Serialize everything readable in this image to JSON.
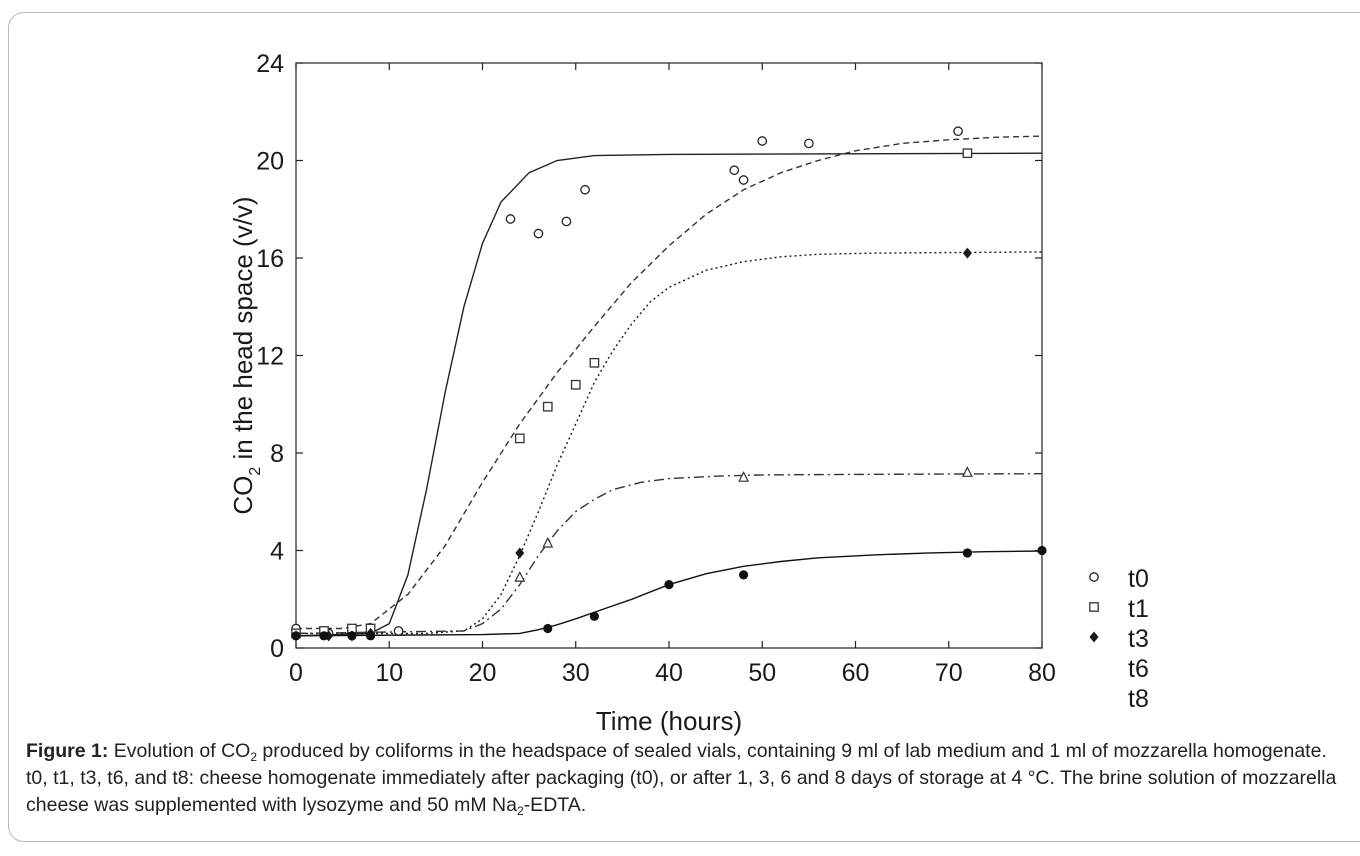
{
  "chart_data": {
    "type": "scatter",
    "xlabel": "Time (hours)",
    "ylabel_parts": [
      "CO",
      "2",
      " in the head space (v/v)"
    ],
    "xlim": [
      0,
      80
    ],
    "ylim": [
      0,
      24
    ],
    "xticks": [
      0,
      10,
      20,
      30,
      40,
      50,
      60,
      70,
      80
    ],
    "yticks": [
      0,
      4,
      8,
      12,
      16,
      20,
      24
    ],
    "grid": false,
    "legend_placement": "right",
    "series": [
      {
        "name": "t0",
        "marker": "open-circle",
        "line_style": "solid",
        "color": "#222222",
        "points": [
          [
            0,
            0.8
          ],
          [
            3.5,
            0.6
          ],
          [
            6,
            0.7
          ],
          [
            8,
            0.7
          ],
          [
            11,
            0.7
          ],
          [
            23,
            17.6
          ],
          [
            26,
            17.0
          ],
          [
            29,
            17.5
          ],
          [
            31,
            18.8
          ],
          [
            47,
            19.6
          ],
          [
            48,
            19.2
          ],
          [
            50,
            20.8
          ],
          [
            55,
            20.7
          ],
          [
            71,
            21.2
          ]
        ],
        "fit": [
          [
            0,
            0.5
          ],
          [
            8,
            0.6
          ],
          [
            10,
            1.0
          ],
          [
            12,
            3.0
          ],
          [
            14,
            6.5
          ],
          [
            16,
            10.5
          ],
          [
            18,
            14.0
          ],
          [
            20,
            16.6
          ],
          [
            22,
            18.3
          ],
          [
            25,
            19.5
          ],
          [
            28,
            20.0
          ],
          [
            32,
            20.2
          ],
          [
            40,
            20.25
          ],
          [
            80,
            20.3
          ]
        ]
      },
      {
        "name": "t1",
        "marker": "open-square",
        "line_style": "dashed",
        "color": "#333333",
        "points": [
          [
            0,
            0.6
          ],
          [
            3,
            0.7
          ],
          [
            6,
            0.8
          ],
          [
            8,
            0.8
          ],
          [
            24,
            8.6
          ],
          [
            27,
            9.9
          ],
          [
            30,
            10.8
          ],
          [
            32,
            11.7
          ],
          [
            72,
            20.3
          ]
        ],
        "fit": [
          [
            0,
            0.8
          ],
          [
            5,
            0.8
          ],
          [
            8,
            1.0
          ],
          [
            12,
            2.2
          ],
          [
            16,
            4.2
          ],
          [
            20,
            6.8
          ],
          [
            24,
            9.2
          ],
          [
            28,
            11.3
          ],
          [
            32,
            13.2
          ],
          [
            36,
            15.0
          ],
          [
            40,
            16.5
          ],
          [
            44,
            17.8
          ],
          [
            48,
            18.8
          ],
          [
            52,
            19.5
          ],
          [
            56,
            20.0
          ],
          [
            60,
            20.4
          ],
          [
            65,
            20.7
          ],
          [
            70,
            20.85
          ],
          [
            75,
            20.95
          ],
          [
            80,
            21.0
          ]
        ]
      },
      {
        "name": "t3",
        "marker": "filled-diamond",
        "line_style": "dotted",
        "color": "#1a1a1a",
        "points": [
          [
            0,
            0.5
          ],
          [
            3.5,
            0.5
          ],
          [
            6,
            0.5
          ],
          [
            8,
            0.6
          ],
          [
            24,
            3.9
          ],
          [
            72,
            16.2
          ]
        ],
        "fit": [
          [
            0,
            0.6
          ],
          [
            14,
            0.6
          ],
          [
            18,
            0.7
          ],
          [
            20,
            1.2
          ],
          [
            22,
            2.2
          ],
          [
            24,
            3.8
          ],
          [
            26,
            5.6
          ],
          [
            28,
            7.5
          ],
          [
            30,
            9.2
          ],
          [
            32,
            10.9
          ],
          [
            34,
            12.2
          ],
          [
            36,
            13.3
          ],
          [
            38,
            14.2
          ],
          [
            40,
            14.8
          ],
          [
            44,
            15.5
          ],
          [
            48,
            15.85
          ],
          [
            52,
            16.05
          ],
          [
            56,
            16.15
          ],
          [
            62,
            16.2
          ],
          [
            80,
            16.25
          ]
        ]
      },
      {
        "name": "t6",
        "marker": "open-triangle",
        "line_style": "dash-dot",
        "color": "#333333",
        "points": [
          [
            24,
            2.9
          ],
          [
            27,
            4.3
          ],
          [
            48,
            7.0
          ],
          [
            72,
            7.2
          ]
        ],
        "fit": [
          [
            0,
            0.6
          ],
          [
            18,
            0.7
          ],
          [
            20,
            1.0
          ],
          [
            22,
            1.6
          ],
          [
            24,
            2.6
          ],
          [
            26,
            3.8
          ],
          [
            28,
            4.8
          ],
          [
            30,
            5.6
          ],
          [
            32,
            6.1
          ],
          [
            34,
            6.5
          ],
          [
            37,
            6.8
          ],
          [
            40,
            6.95
          ],
          [
            45,
            7.05
          ],
          [
            50,
            7.1
          ],
          [
            60,
            7.12
          ],
          [
            80,
            7.15
          ]
        ]
      },
      {
        "name": "t8",
        "marker": "filled-circle",
        "line_style": "solid",
        "color": "#111111",
        "points": [
          [
            0,
            0.5
          ],
          [
            3,
            0.5
          ],
          [
            6,
            0.5
          ],
          [
            8,
            0.5
          ],
          [
            27,
            0.8
          ],
          [
            32,
            1.3
          ],
          [
            40,
            2.6
          ],
          [
            48,
            3.0
          ],
          [
            72,
            3.9
          ],
          [
            80,
            4.0
          ]
        ],
        "fit": [
          [
            0,
            0.5
          ],
          [
            20,
            0.55
          ],
          [
            24,
            0.6
          ],
          [
            26,
            0.75
          ],
          [
            28,
            0.95
          ],
          [
            30,
            1.2
          ],
          [
            33,
            1.6
          ],
          [
            36,
            2.0
          ],
          [
            40,
            2.6
          ],
          [
            44,
            3.05
          ],
          [
            48,
            3.35
          ],
          [
            52,
            3.55
          ],
          [
            56,
            3.7
          ],
          [
            62,
            3.82
          ],
          [
            68,
            3.9
          ],
          [
            74,
            3.95
          ],
          [
            80,
            3.98
          ]
        ]
      }
    ]
  },
  "caption": {
    "label": "Figure 1:",
    "p1": " Evolution of CO",
    "s1": "2",
    "p2": " produced by coliforms in the headspace of sealed vials, containing 9 ml of lab medium and 1 ml of mozzarella homogenate. t0, t1, t3, t6, and t8: cheese homogenate immediately after packaging (t0), or after 1, 3, 6 and 8 days of storage at 4 °C. The brine solution of mozzarella cheese was supplemented with lysozyme and 50 mM Na",
    "s2": "2",
    "p3": "-EDTA."
  }
}
